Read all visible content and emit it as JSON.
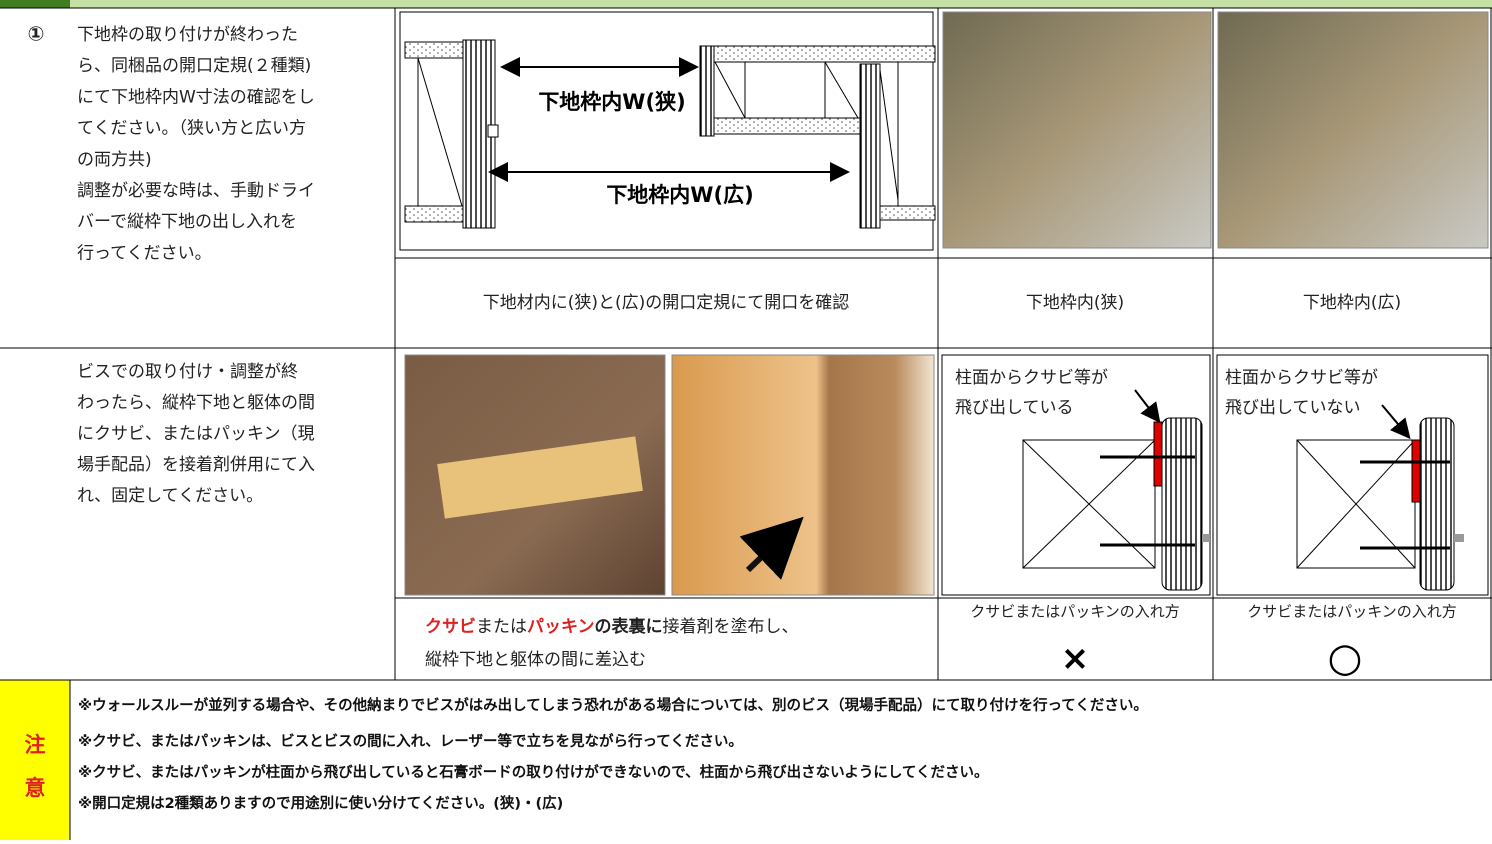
{
  "step1": {
    "number": "①",
    "lines": [
      "下地枠の取り付けが終わった",
      "ら、同梱品の開口定規(２種類)",
      "にて下地枠内W寸法の確認をし",
      "てください。（狭い方と広い方",
      "の両方共)",
      "調整が必要な時は、手動ドライ",
      "バーで縦枠下地の出し入れを",
      "行ってください。"
    ],
    "diagram": {
      "narrow": "下地枠内W(狭)",
      "wide": "下地枠内W(広)"
    },
    "captions": [
      "下地材内に(狭)と(広)の開口定規にて開口を確認",
      "下地枠内(狭)",
      "下地枠内(広)"
    ]
  },
  "step2": {
    "lines": [
      "ビスでの取り付け・調整が終",
      "わったら、縦枠下地と躯体の間",
      "にクサビ、またはパッキン（現",
      "場手配品）を接着剤併用にて入",
      "れ、固定してください。"
    ],
    "caption": {
      "line1": [
        "クサビ",
        "または",
        "パッキン",
        "の表裏に",
        "接着剤を塗布し、"
      ],
      "line2": "縦枠下地と躯体の間に差込む"
    },
    "diagram_bad": {
      "label": [
        "柱面からクサビ等が",
        "飛び出している"
      ],
      "caption": "クサビまたはパッキンの入れ方",
      "mark": "×"
    },
    "diagram_good": {
      "label": [
        "柱面からクサビ等が",
        "飛び出していない"
      ],
      "caption": "クサビまたはパッキンの入れ方",
      "mark": "○"
    }
  },
  "notes": {
    "heading": [
      "注",
      "意"
    ],
    "lines": [
      "※ウォールスルーが並列する場合や、その他納まりでビスがはみ出してしまう恐れがある場合については、別のビス（現場手配品）にて取り付けを行ってください。",
      "※クサビ、またはパッキンは、ビスとビスの間に入れ、レーザー等で立ちを見ながら行ってください。",
      "※クサビ、またはパッキンが柱面から飛び出していると石膏ボードの取り付けができないので、柱面から飛び出さないようにしてください。",
      "※開口定規は2種類ありますので用途別に使い分けてください。(狭)・(広)"
    ]
  }
}
